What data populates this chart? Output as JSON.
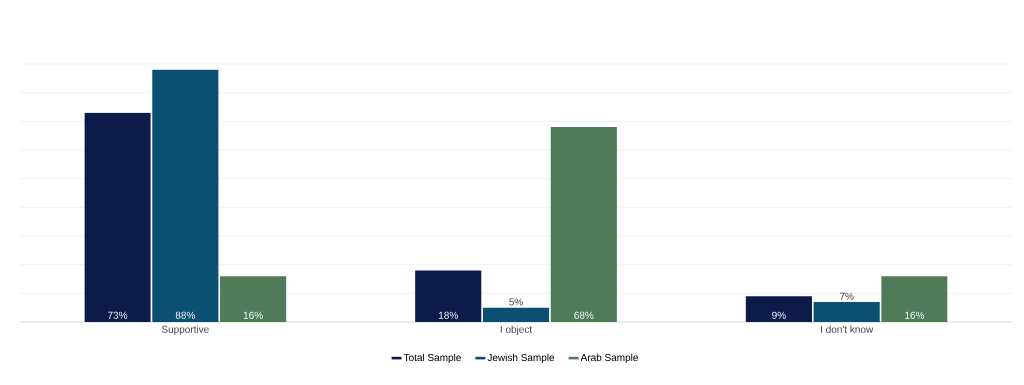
{
  "chart_data": {
    "type": "bar",
    "categories": [
      "Supportive",
      "I object",
      "I don't know"
    ],
    "series": [
      {
        "name": "Total Sample",
        "color": "#0d1b4a",
        "values": [
          73,
          18,
          9
        ],
        "value_labels": [
          "73%",
          "18%",
          "9%"
        ]
      },
      {
        "name": "Jewish Sample",
        "color": "#0b5070",
        "values": [
          88,
          5,
          7
        ],
        "value_labels": [
          "88%",
          "5%",
          "7%"
        ]
      },
      {
        "name": "Arab Sample",
        "color": "#4f7b58",
        "values": [
          16,
          68,
          16
        ],
        "value_labels": [
          "16%",
          "68%",
          "16%"
        ]
      }
    ],
    "ylim": [
      0,
      90
    ],
    "yticks": [
      {
        "value": 0,
        "label": null
      },
      {
        "value": 10,
        "label": null
      },
      {
        "value": 20,
        "label": null
      },
      {
        "value": 30,
        "label": null
      },
      {
        "value": 40,
        "label": null
      },
      {
        "value": 50,
        "label": null
      },
      {
        "value": 60,
        "label": null
      },
      {
        "value": 70,
        "label": null
      },
      {
        "value": 80,
        "label": null
      },
      {
        "value": 90,
        "label": null
      }
    ],
    "grid": "y",
    "legend": "bottom",
    "tick_labels": "x"
  }
}
